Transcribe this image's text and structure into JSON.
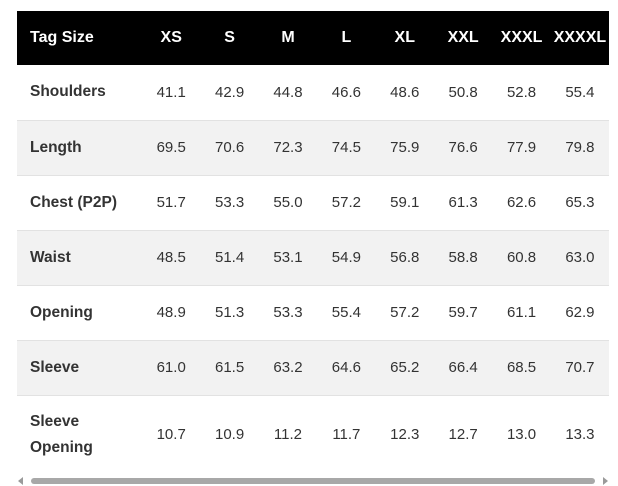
{
  "header": {
    "label": "Tag Size",
    "sizes": [
      "XS",
      "S",
      "M",
      "L",
      "XL",
      "XXL",
      "XXXL",
      "XXXXL"
    ]
  },
  "rows": [
    {
      "label": "Shoulders",
      "values": [
        "41.1",
        "42.9",
        "44.8",
        "46.6",
        "48.6",
        "50.8",
        "52.8",
        "55.4"
      ]
    },
    {
      "label": "Length",
      "values": [
        "69.5",
        "70.6",
        "72.3",
        "74.5",
        "75.9",
        "76.6",
        "77.9",
        "79.8"
      ]
    },
    {
      "label": "Chest (P2P)",
      "values": [
        "51.7",
        "53.3",
        "55.0",
        "57.2",
        "59.1",
        "61.3",
        "62.6",
        "65.3"
      ]
    },
    {
      "label": "Waist",
      "values": [
        "48.5",
        "51.4",
        "53.1",
        "54.9",
        "56.8",
        "58.8",
        "60.8",
        "63.0"
      ]
    },
    {
      "label": "Opening",
      "values": [
        "48.9",
        "51.3",
        "53.3",
        "55.4",
        "57.2",
        "59.7",
        "61.1",
        "62.9"
      ]
    },
    {
      "label": "Sleeve",
      "values": [
        "61.0",
        "61.5",
        "63.2",
        "64.6",
        "65.2",
        "66.4",
        "68.5",
        "70.7"
      ]
    },
    {
      "label": "Sleeve Opening",
      "values": [
        "10.7",
        "10.9",
        "11.2",
        "11.7",
        "12.3",
        "12.7",
        "13.0",
        "13.3"
      ]
    }
  ],
  "colors": {
    "header_bg": "#000000",
    "header_text": "#ffffff",
    "stripe_bg": "#f2f2f2",
    "body_text": "#333333"
  }
}
